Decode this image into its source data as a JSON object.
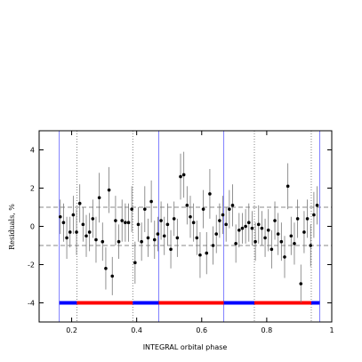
{
  "chart_data": {
    "type": "scatter",
    "xlabel": "INTEGRAL orbital phase",
    "ylabel": "Residuals, %",
    "xlim": [
      0.1,
      1.0
    ],
    "ylim": [
      -5,
      5
    ],
    "xticks": [
      0.2,
      0.4,
      0.6,
      0.8,
      1
    ],
    "yticks": [
      -4,
      -2,
      0,
      2,
      4
    ],
    "hlines": [
      -1,
      1
    ],
    "blue_lines": [
      0.162,
      0.468,
      0.668,
      0.963
    ],
    "dotted_lines": [
      0.216,
      0.388,
      0.762,
      0.937
    ],
    "phase_bar_y": -4,
    "phase_bar": [
      {
        "start": 0.162,
        "end": 0.216,
        "color": "#0000ff"
      },
      {
        "start": 0.216,
        "end": 0.388,
        "color": "#ff0000"
      },
      {
        "start": 0.388,
        "end": 0.468,
        "color": "#0000ff"
      },
      {
        "start": 0.468,
        "end": 0.668,
        "color": "#ff0000"
      },
      {
        "start": 0.668,
        "end": 0.762,
        "color": "#0000ff"
      },
      {
        "start": 0.762,
        "end": 0.937,
        "color": "#ff0000"
      },
      {
        "start": 0.937,
        "end": 0.963,
        "color": "#0000ff"
      }
    ],
    "x": [
      0.165,
      0.175,
      0.185,
      0.195,
      0.205,
      0.215,
      0.225,
      0.235,
      0.245,
      0.255,
      0.265,
      0.275,
      0.285,
      0.295,
      0.305,
      0.315,
      0.325,
      0.335,
      0.345,
      0.355,
      0.365,
      0.375,
      0.385,
      0.395,
      0.405,
      0.415,
      0.425,
      0.435,
      0.445,
      0.455,
      0.465,
      0.475,
      0.485,
      0.495,
      0.505,
      0.515,
      0.525,
      0.535,
      0.545,
      0.555,
      0.565,
      0.575,
      0.585,
      0.595,
      0.605,
      0.615,
      0.625,
      0.635,
      0.645,
      0.655,
      0.665,
      0.675,
      0.685,
      0.695,
      0.705,
      0.715,
      0.725,
      0.735,
      0.745,
      0.755,
      0.765,
      0.775,
      0.785,
      0.795,
      0.805,
      0.815,
      0.825,
      0.835,
      0.845,
      0.855,
      0.865,
      0.875,
      0.885,
      0.895,
      0.905,
      0.915,
      0.925,
      0.935,
      0.945,
      0.955
    ],
    "values": [
      0.5,
      0.2,
      -0.6,
      -0.3,
      0.6,
      -0.3,
      1.2,
      0.1,
      -0.5,
      -0.3,
      0.4,
      -0.7,
      1.5,
      -0.8,
      -2.2,
      1.9,
      -2.6,
      0.3,
      -0.8,
      0.3,
      0.2,
      0.2,
      0.9,
      -1.9,
      0.1,
      -0.8,
      0.9,
      -0.6,
      1.3,
      -0.7,
      -0.4,
      0.3,
      -0.5,
      0.1,
      -1.2,
      0.4,
      -0.6,
      2.6,
      2.7,
      1.1,
      0.5,
      0.2,
      -0.6,
      -1.5,
      0.9,
      -1.4,
      1.7,
      -1.0,
      -0.4,
      0.3,
      0.6,
      0.1,
      0.9,
      1.1,
      -0.9,
      -0.2,
      -0.1,
      0.0,
      0.2,
      -0.1,
      -0.8,
      0.1,
      -0.1,
      -0.6,
      -0.2,
      -1.2,
      0.3,
      -0.4,
      -0.8,
      -1.6,
      2.1,
      -0.5,
      -0.9,
      0.4,
      -3.0,
      -0.3,
      0.4,
      -1.0,
      0.6,
      1.1
    ],
    "errors": [
      0.9,
      1.0,
      1.1,
      0.8,
      1.0,
      1.2,
      1.0,
      0.9,
      1.1,
      1.0,
      1.0,
      1.2,
      1.3,
      1.0,
      1.1,
      1.2,
      1.0,
      1.3,
      0.9,
      1.1,
      1.0,
      1.0,
      1.2,
      1.1,
      0.9,
      1.0,
      1.2,
      1.0,
      1.1,
      1.0,
      0.9,
      1.0,
      1.0,
      1.1,
      1.0,
      0.9,
      1.0,
      1.2,
      1.2,
      1.0,
      1.1,
      1.0,
      0.9,
      1.2,
      1.0,
      1.1,
      1.3,
      1.0,
      1.0,
      0.9,
      1.0,
      0.9,
      1.0,
      1.1,
      1.0,
      0.9,
      0.8,
      0.9,
      1.0,
      0.9,
      1.0,
      1.0,
      0.9,
      1.0,
      1.1,
      1.0,
      1.0,
      1.1,
      1.0,
      1.1,
      1.2,
      1.0,
      1.1,
      1.0,
      1.0,
      1.1,
      1.0,
      1.1,
      1.2,
      1.0
    ],
    "color": "#000000",
    "errorbar_color": "#777777"
  }
}
